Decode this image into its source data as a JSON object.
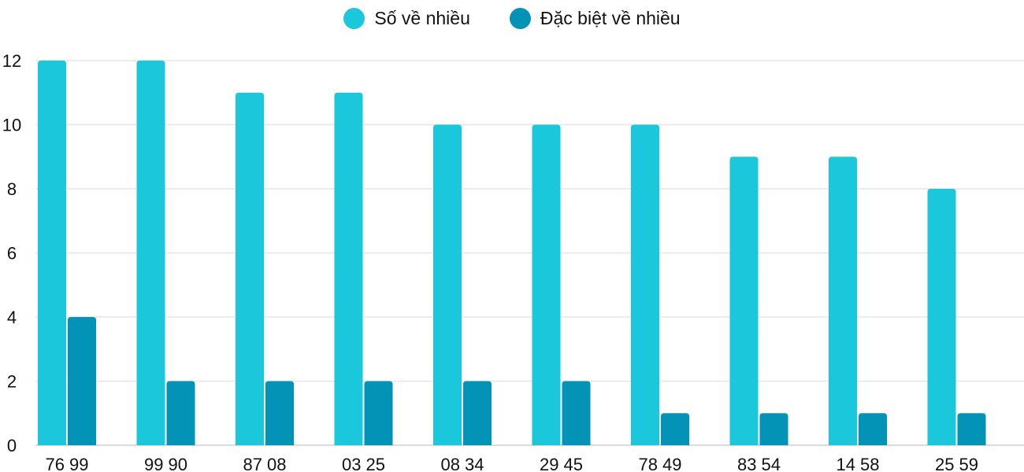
{
  "chart_data": {
    "type": "bar",
    "categories": [
      "76 99",
      "99 90",
      "87 08",
      "03 25",
      "08 34",
      "29 45",
      "78 49",
      "83 54",
      "14 58",
      "25 59"
    ],
    "series": [
      {
        "name": "Số về nhiều",
        "color": "#1bc8db",
        "values": [
          12,
          12,
          11,
          11,
          10,
          10,
          10,
          9,
          9,
          8
        ]
      },
      {
        "name": "Đặc biệt về nhiều",
        "color": "#0393b6",
        "values": [
          4,
          2,
          2,
          2,
          2,
          2,
          1,
          1,
          1,
          1
        ]
      }
    ],
    "ylim": [
      0,
      12
    ],
    "yticks": [
      0,
      2,
      4,
      6,
      8,
      10,
      12
    ],
    "grid": true,
    "legend": "top-center",
    "title": "",
    "xlabel": "",
    "ylabel": ""
  }
}
